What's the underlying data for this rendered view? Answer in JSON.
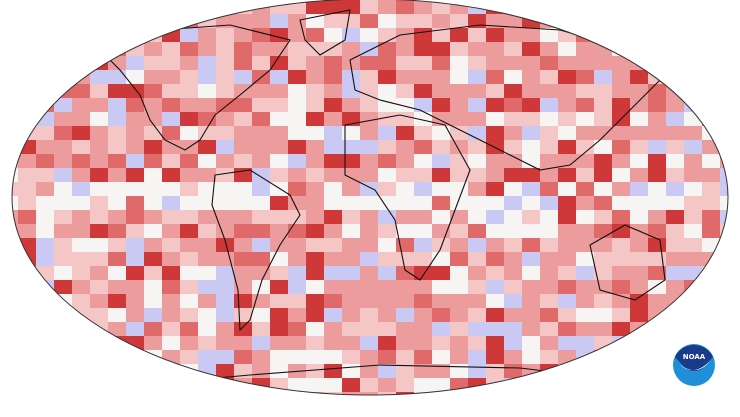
{
  "map": {
    "palette": {
      "near_average": "#f7f4f4",
      "warmer": "#f5c6c6",
      "much_warmer": "#ec9c9c",
      "strongly_warmer": "#e06a6a",
      "record_warmest": "#cf3838",
      "cooler": "#c9c9f3"
    },
    "outline_color": "#111111"
  },
  "logo": {
    "text": "NOAA",
    "primary": "#1a3a8a",
    "secondary": "#1e8fd8"
  }
}
